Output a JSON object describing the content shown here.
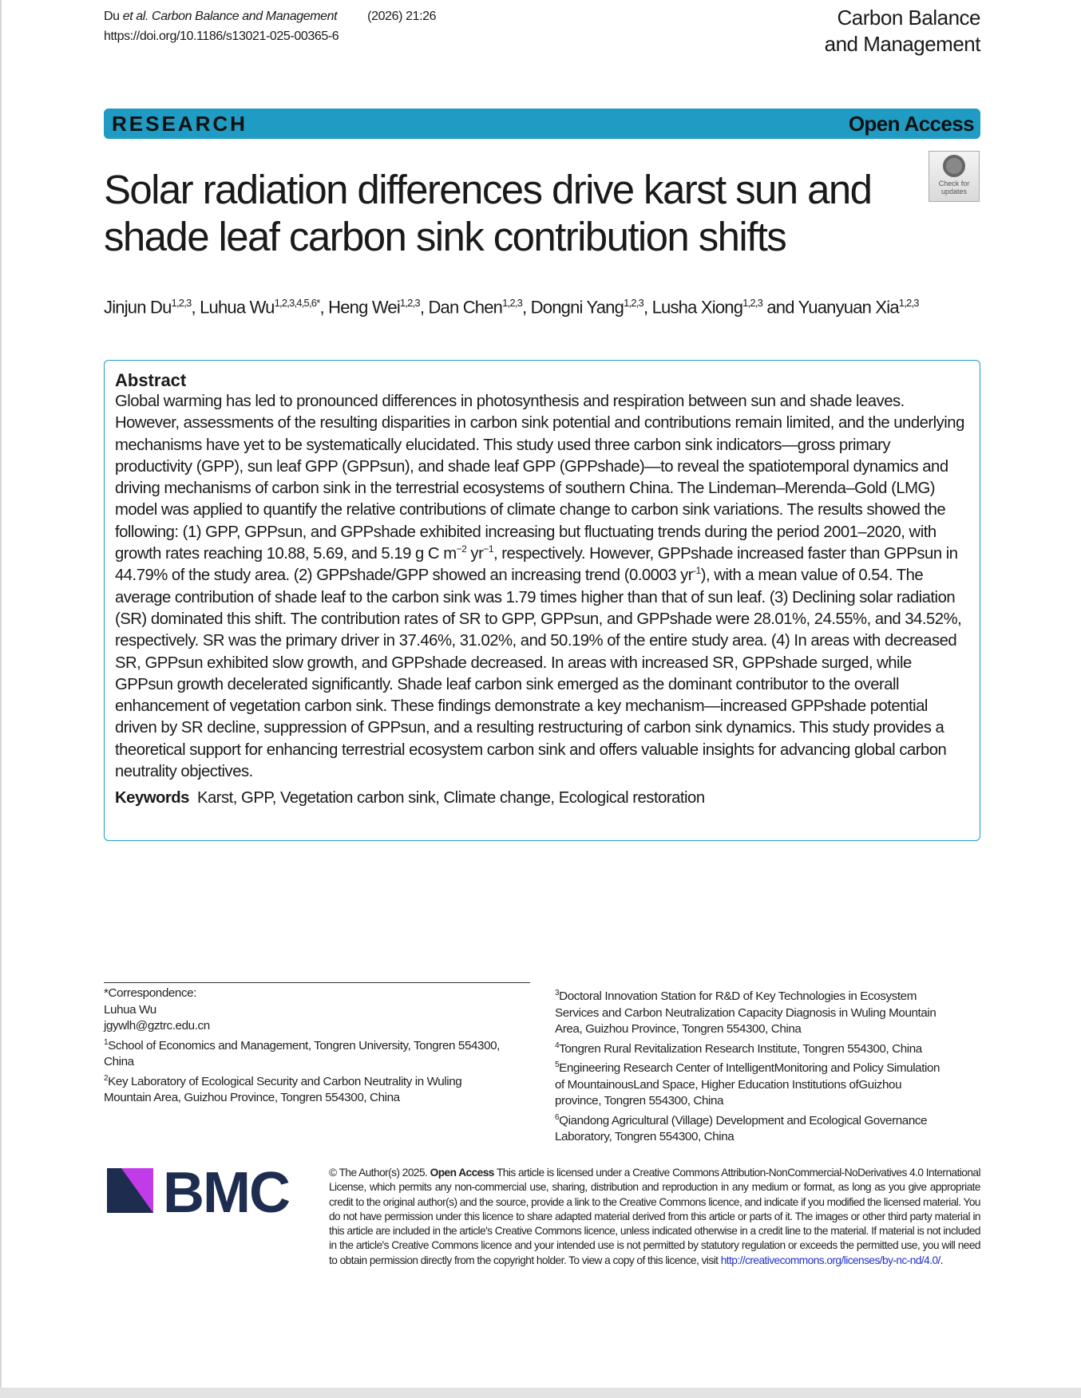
{
  "header": {
    "citation_authors": "Du ",
    "citation_etal": "et al.",
    "citation_journal": " Carbon Balance and Management",
    "citation_volume": "(2026) 21:26",
    "doi": "https://doi.org/10.1186/s13021-025-00365-6",
    "journal_line1": "Carbon Balance",
    "journal_line2": "and Management"
  },
  "banner": {
    "type": "RESEARCH",
    "access": "Open Access"
  },
  "check_updates": {
    "line1": "Check for",
    "line2": "updates"
  },
  "title": "Solar radiation differences drive karst sun and shade leaf carbon sink contribution shifts",
  "authors": [
    {
      "name": "Jinjun Du",
      "aff": "1,2,3",
      "sep": ", "
    },
    {
      "name": "Luhua Wu",
      "aff": "1,2,3,4,5,6*",
      "sep": ", "
    },
    {
      "name": "Heng Wei",
      "aff": "1,2,3",
      "sep": ", "
    },
    {
      "name": "Dan Chen",
      "aff": "1,2,3",
      "sep": ", "
    },
    {
      "name": "Dongni Yang",
      "aff": "1,2,3",
      "sep": ", "
    },
    {
      "name": "Lusha Xiong",
      "aff": "1,2,3",
      "sep": " and "
    },
    {
      "name": "Yuanyuan Xia",
      "aff": "1,2,3",
      "sep": ""
    }
  ],
  "abstract": {
    "heading": "Abstract",
    "p1": "Global warming has led to pronounced differences in photosynthesis and respiration between sun and shade leaves. However, assessments of the resulting disparities in carbon sink potential and contributions remain limited, and the underlying mechanisms have yet to be systematically elucidated. This study used three carbon sink indicators—gross primary productivity (GPP), sun leaf GPP (GPPsun), and shade leaf GPP (GPPshade)—to reveal the spatiotemporal dynamics and driving mechanisms of carbon sink in the terrestrial ecosystems of southern China. The Lindeman–Merenda–Gold (LMG) model was applied to quantify the relative contributions of climate change to carbon sink variations. The results showed the following: (1) GPP, GPPsun, and GPPshade exhibited increasing but fluctuating trends during the period 2001–2020, with growth rates reaching 10.88, 5.69, and 5.19 g C m",
    "sup1": "−2",
    "p2": " yr",
    "sup2": "−1",
    "p3": ", respectively. However, GPPshade increased faster than GPPsun in 44.79% of the study area. (2) GPPshade/GPP showed an increasing trend (0.0003 yr",
    "sup3": "-1",
    "p4": "), with a mean value of 0.54. The average contribution of shade leaf to the carbon sink was 1.79 times higher than that of sun leaf. (3) Declining solar radiation (SR) dominated this shift. The contribution rates of SR to GPP, GPPsun, and GPPshade were 28.01%, 24.55%, and 34.52%, respectively. SR was the primary driver in 37.46%, 31.02%, and 50.19% of the entire study area. (4) In areas with decreased SR, GPPsun exhibited slow growth, and GPPshade decreased. In areas with increased SR, GPPshade surged, while GPPsun growth decelerated significantly. Shade leaf carbon sink emerged as the dominant contributor to the overall enhancement of vegetation carbon sink. These findings demonstrate a key mechanism—increased GPPshade potential driven by SR decline, suppression of GPPsun, and a resulting restructuring of carbon sink dynamics. This study provides a theoretical support for enhancing terrestrial ecosystem carbon sink and offers valuable insights for advancing global carbon neutrality objectives.",
    "keywords_label": "Keywords",
    "keywords": "Karst, GPP, Vegetation carbon sink, Climate change, Ecological restoration"
  },
  "footnotes_left": {
    "corr": "*Correspondence:",
    "name": "Luhua Wu",
    "email": "jgywlh@gztrc.edu.cn",
    "aff1_num": "1",
    "aff1": "School of Economics and Management, Tongren University, Tongren 554300, China",
    "aff2_num": "2",
    "aff2": "Key Laboratory of Ecological Security and Carbon Neutrality in Wuling Mountain Area, Guizhou Province, Tongren 554300, China"
  },
  "footnotes_right": {
    "aff3_num": "3",
    "aff3": "Doctoral Innovation Station for R&D of Key Technologies in Ecosystem Services and Carbon Neutralization Capacity Diagnosis in Wuling Mountain Area, Guizhou Province, Tongren 554300, China",
    "aff4_num": "4",
    "aff4": "Tongren Rural Revitalization Research Institute, Tongren 554300, China",
    "aff5_num": "5",
    "aff5": "Engineering Research Center of IntelligentMonitoring and Policy Simulation of MountainousLand Space, Higher Education Institutions ofGuizhou province, Tongren 554300, China",
    "aff6_num": "6",
    "aff6": "Qiandong Agricultural (Village) Development and Ecological Governance Laboratory, Tongren 554300, China"
  },
  "logo": {
    "text": "BMC",
    "navy": "#1e2d4f",
    "magenta": "#c23be8"
  },
  "license": {
    "copyright": "© The Author(s) 2025. ",
    "open_access": "Open Access",
    "text": "  This article is licensed under a Creative Commons Attribution-NonCommercial-NoDerivatives 4.0 International License, which permits any non-commercial use, sharing, distribution and reproduction in any medium or format, as long as you give appropriate credit to the original author(s) and the source, provide a link to the Creative Commons licence, and indicate if you modified the licensed material. You do not have permission under this licence to share adapted material derived from this article or parts of it. The images or other third party material in this article are included in the article's Creative Commons licence, unless indicated otherwise in a credit line to the material. If material is not included in the article's Creative Commons licence and your intended use is not permitted by statutory regulation or exceeds the permitted use, you will need to obtain permission directly from the copyright holder. To view a copy of this licence, visit ",
    "link": "http://creativecommons.org/licenses/by-nc-nd/4.0/",
    "end": "."
  },
  "colors": {
    "banner": "#1f9bc4",
    "abstract_border": "#1f9bc4",
    "link": "#2233cc"
  }
}
